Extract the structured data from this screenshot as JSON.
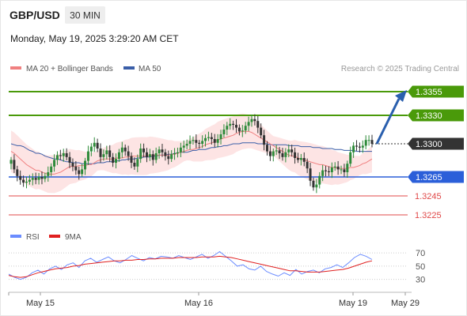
{
  "header": {
    "symbol": "GBP/USD",
    "timeframe": "30 MIN",
    "timestamp": "Monday, May 19, 2025 3:29:20 AM CET"
  },
  "legend": {
    "ma20_label": "MA 20 + Bollinger Bands",
    "ma50_label": "MA 50",
    "rsi_label": "RSI",
    "rsi_ma_label": "9MA"
  },
  "watermark": "Research © 2025 Trading Central",
  "colors": {
    "ma20": "#f08080",
    "ma50": "#3a5ea8",
    "band_fill": "#fde4e4",
    "resistance": "#4a9a0a",
    "support_blue": "#2b5fd9",
    "support_red": "#e04848",
    "current": "#333333",
    "arrow": "#2a5fae",
    "candle_up": "#2e8b3a",
    "candle_down": "#333333",
    "rsi_line": "#6b8cff",
    "rsi_ma": "#e02020"
  },
  "chart_data": [
    {
      "type": "candlestick",
      "title": "GBP/USD",
      "timeframe": "30 MIN",
      "xlabel": "",
      "ylabel": "",
      "x_ticks": [
        "May 15",
        "May 16",
        "May 19",
        "May 29"
      ],
      "ylim": [
        1.3205,
        1.3362
      ],
      "levels": [
        {
          "label": "1.3355",
          "value": 1.3355,
          "kind": "resistance"
        },
        {
          "label": "1.3330",
          "value": 1.333,
          "kind": "resistance"
        },
        {
          "label": "1.3300",
          "value": 1.33,
          "kind": "current"
        },
        {
          "label": "1.3265",
          "value": 1.3265,
          "kind": "support"
        },
        {
          "label": "1.3245",
          "value": 1.3245,
          "kind": "support-minor"
        },
        {
          "label": "1.3225",
          "value": 1.3225,
          "kind": "support-minor"
        }
      ],
      "indicators": [
        "MA 20 + Bollinger Bands",
        "MA 50"
      ],
      "close_series": [
        1.3283,
        1.3273,
        1.3266,
        1.3262,
        1.3259,
        1.326,
        1.3262,
        1.3264,
        1.3262,
        1.3265,
        1.3263,
        1.3266,
        1.327,
        1.3276,
        1.3283,
        1.3288,
        1.3287,
        1.329,
        1.3286,
        1.328,
        1.3276,
        1.3272,
        1.3268,
        1.3273,
        1.3282,
        1.3292,
        1.3297,
        1.3301,
        1.3295,
        1.3286,
        1.3289,
        1.3293,
        1.3286,
        1.328,
        1.3284,
        1.3291,
        1.3296,
        1.3292,
        1.3287,
        1.328,
        1.3276,
        1.3284,
        1.3295,
        1.3291,
        1.3286,
        1.3289,
        1.3283,
        1.329,
        1.3294,
        1.3291,
        1.3287,
        1.3284,
        1.3289,
        1.329,
        1.3291,
        1.3296,
        1.3298,
        1.33,
        1.3303,
        1.3304,
        1.3301,
        1.33,
        1.3303,
        1.3306,
        1.3307,
        1.3305,
        1.3301,
        1.3305,
        1.331,
        1.3315,
        1.3319,
        1.3321,
        1.332,
        1.3317,
        1.3313,
        1.3314,
        1.3319,
        1.3323,
        1.3326,
        1.3324,
        1.3317,
        1.3309,
        1.3299,
        1.3292,
        1.3287,
        1.3292,
        1.3293,
        1.329,
        1.3286,
        1.3291,
        1.3294,
        1.3291,
        1.3285,
        1.3283,
        1.3285,
        1.3281,
        1.3274,
        1.3261,
        1.3254,
        1.3257,
        1.3266,
        1.3272,
        1.3271,
        1.327,
        1.3275,
        1.3276,
        1.3273,
        1.3273,
        1.327,
        1.3279,
        1.3291,
        1.3298,
        1.3297,
        1.3296,
        1.3298,
        1.3304,
        1.3304,
        1.33
      ],
      "ma20_series": [
        1.3292,
        1.329,
        1.3287,
        1.3284,
        1.3281,
        1.3278,
        1.3276,
        1.3274,
        1.3272,
        1.327,
        1.3269,
        1.3268,
        1.3268,
        1.3268,
        1.3269,
        1.327,
        1.3272,
        1.3274,
        1.3276,
        1.3276,
        1.3276,
        1.3277,
        1.3277,
        1.3277,
        1.3278,
        1.328,
        1.3282,
        1.3283,
        1.3284,
        1.3284,
        1.3284,
        1.3284,
        1.3285,
        1.3285,
        1.3285,
        1.3286,
        1.3286,
        1.3287,
        1.3287,
        1.3287,
        1.3287,
        1.3287,
        1.3288,
        1.3288,
        1.3288,
        1.3288,
        1.3288,
        1.3288,
        1.3288,
        1.3289,
        1.3289,
        1.329,
        1.3291,
        1.3292,
        1.3293,
        1.3294,
        1.3295,
        1.3296,
        1.3297,
        1.3299,
        1.33,
        1.3301,
        1.3302,
        1.3304,
        1.3305,
        1.3306,
        1.3307,
        1.3308,
        1.3309,
        1.3311,
        1.3312,
        1.3313,
        1.3313,
        1.3312,
        1.331,
        1.3308,
        1.3306,
        1.3304,
        1.3302,
        1.33,
        1.3298,
        1.3296,
        1.3294,
        1.3292,
        1.329,
        1.3288,
        1.3287,
        1.3285,
        1.3284,
        1.3283,
        1.3282,
        1.3281,
        1.328,
        1.3279,
        1.3278,
        1.3278,
        1.3277,
        1.3276,
        1.3275,
        1.3275,
        1.3274,
        1.3274,
        1.3274,
        1.3275,
        1.3275,
        1.3276,
        1.3277,
        1.3279,
        1.328,
        1.3282,
        1.3284
      ],
      "ma50_series": [
        1.33,
        1.3299,
        1.3298,
        1.3297,
        1.3295,
        1.3293,
        1.3292,
        1.329,
        1.3289,
        1.3287,
        1.3286,
        1.3285,
        1.3284,
        1.3283,
        1.3282,
        1.3281,
        1.3281,
        1.328,
        1.328,
        1.3279,
        1.3279,
        1.3279,
        1.3279,
        1.328,
        1.328,
        1.328,
        1.3281,
        1.3281,
        1.3282,
        1.3282,
        1.3283,
        1.3283,
        1.3284,
        1.3284,
        1.3285,
        1.3285,
        1.3286,
        1.3286,
        1.3287,
        1.3287,
        1.3288,
        1.3288,
        1.3289,
        1.3289,
        1.329,
        1.329,
        1.3291,
        1.3291,
        1.3292,
        1.3293,
        1.3293,
        1.3294,
        1.3294,
        1.3295,
        1.3296,
        1.3296,
        1.3297,
        1.3298,
        1.3298,
        1.3299,
        1.33,
        1.33,
        1.3301,
        1.3301,
        1.3301,
        1.3301,
        1.33,
        1.33,
        1.33,
        1.33,
        1.3299,
        1.3299,
        1.3299,
        1.3299,
        1.3299,
        1.3298,
        1.3298,
        1.3298,
        1.3297,
        1.3297,
        1.3297,
        1.3296,
        1.3296,
        1.3296,
        1.3295,
        1.3295,
        1.3295,
        1.3294,
        1.3294,
        1.3294,
        1.3293,
        1.3293,
        1.3293,
        1.3292,
        1.3292,
        1.3292,
        1.3292,
        1.3292
      ]
    },
    {
      "type": "line",
      "title": "RSI",
      "series": [
        {
          "name": "RSI",
          "values": [
            38,
            33,
            30,
            33,
            40,
            44,
            38,
            46,
            50,
            45,
            52,
            55,
            48,
            58,
            62,
            56,
            60,
            64,
            58,
            55,
            60,
            66,
            62,
            58,
            63,
            61,
            65,
            64,
            62,
            66,
            63,
            60,
            64,
            68,
            62,
            66,
            72,
            65,
            58,
            50,
            52,
            46,
            44,
            50,
            42,
            38,
            35,
            40,
            36,
            45,
            38,
            42,
            44,
            40,
            46,
            48,
            52,
            48,
            55,
            63,
            68,
            65,
            60
          ]
        },
        {
          "name": "9MA",
          "values": [
            36,
            34,
            33,
            34,
            37,
            40,
            42,
            44,
            46,
            47,
            48,
            50,
            51,
            53,
            54,
            55,
            56,
            57,
            58,
            58,
            59,
            59,
            60,
            60,
            61,
            61,
            62,
            62,
            62,
            63,
            63,
            63,
            63,
            64,
            64,
            64,
            65,
            64,
            63,
            61,
            59,
            57,
            55,
            53,
            51,
            49,
            47,
            45,
            43,
            43,
            42,
            41,
            41,
            41,
            42,
            43,
            44,
            45,
            47,
            50,
            53,
            56,
            58
          ]
        }
      ],
      "y_ticks": [
        "70",
        "50",
        "30"
      ],
      "ylim": [
        20,
        75
      ]
    }
  ]
}
